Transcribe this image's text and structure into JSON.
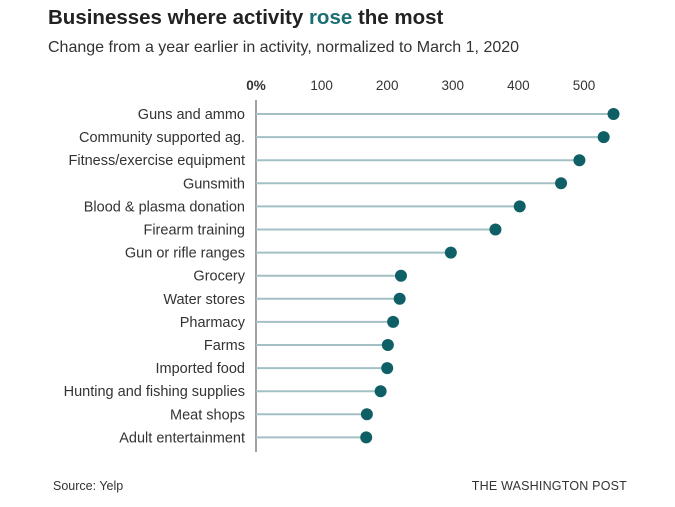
{
  "title": {
    "before": "Businesses where activity ",
    "accent": "rose",
    "after": " the most"
  },
  "subtitle": "Change from a year earlier in activity, normalized to March 1, 2020",
  "source": "Source: Yelp",
  "credit": "THE WASHINGTON POST",
  "colors": {
    "dot": "#0f6066",
    "line": "#a3c0c4",
    "axis": "#444444",
    "accent": "#1a6e73"
  },
  "chart_data": {
    "type": "scatter",
    "orientation": "horizontal-lollipop",
    "title": "Businesses where activity rose the most",
    "subtitle": "Change from a year earlier in activity, normalized to March 1, 2020",
    "xlim": [
      0,
      550
    ],
    "xticks": [
      0,
      100,
      200,
      300,
      400,
      500
    ],
    "xtick_labels": [
      "0%",
      "100",
      "200",
      "300",
      "400",
      "500"
    ],
    "xaxis_position": "top",
    "grid": false,
    "categories": [
      "Guns and ammo",
      "Community supported ag.",
      "Fitness/exercise equipment",
      "Gunsmith",
      "Blood & plasma donation",
      "Firearm training",
      "Gun or rifle ranges",
      "Grocery",
      "Water stores",
      "Pharmacy",
      "Farms",
      "Imported food",
      "Hunting and fishing supplies",
      "Meat shops",
      "Adult entertainment"
    ],
    "values": [
      545,
      530,
      493,
      465,
      402,
      365,
      297,
      221,
      219,
      209,
      201,
      200,
      190,
      169,
      168
    ]
  }
}
